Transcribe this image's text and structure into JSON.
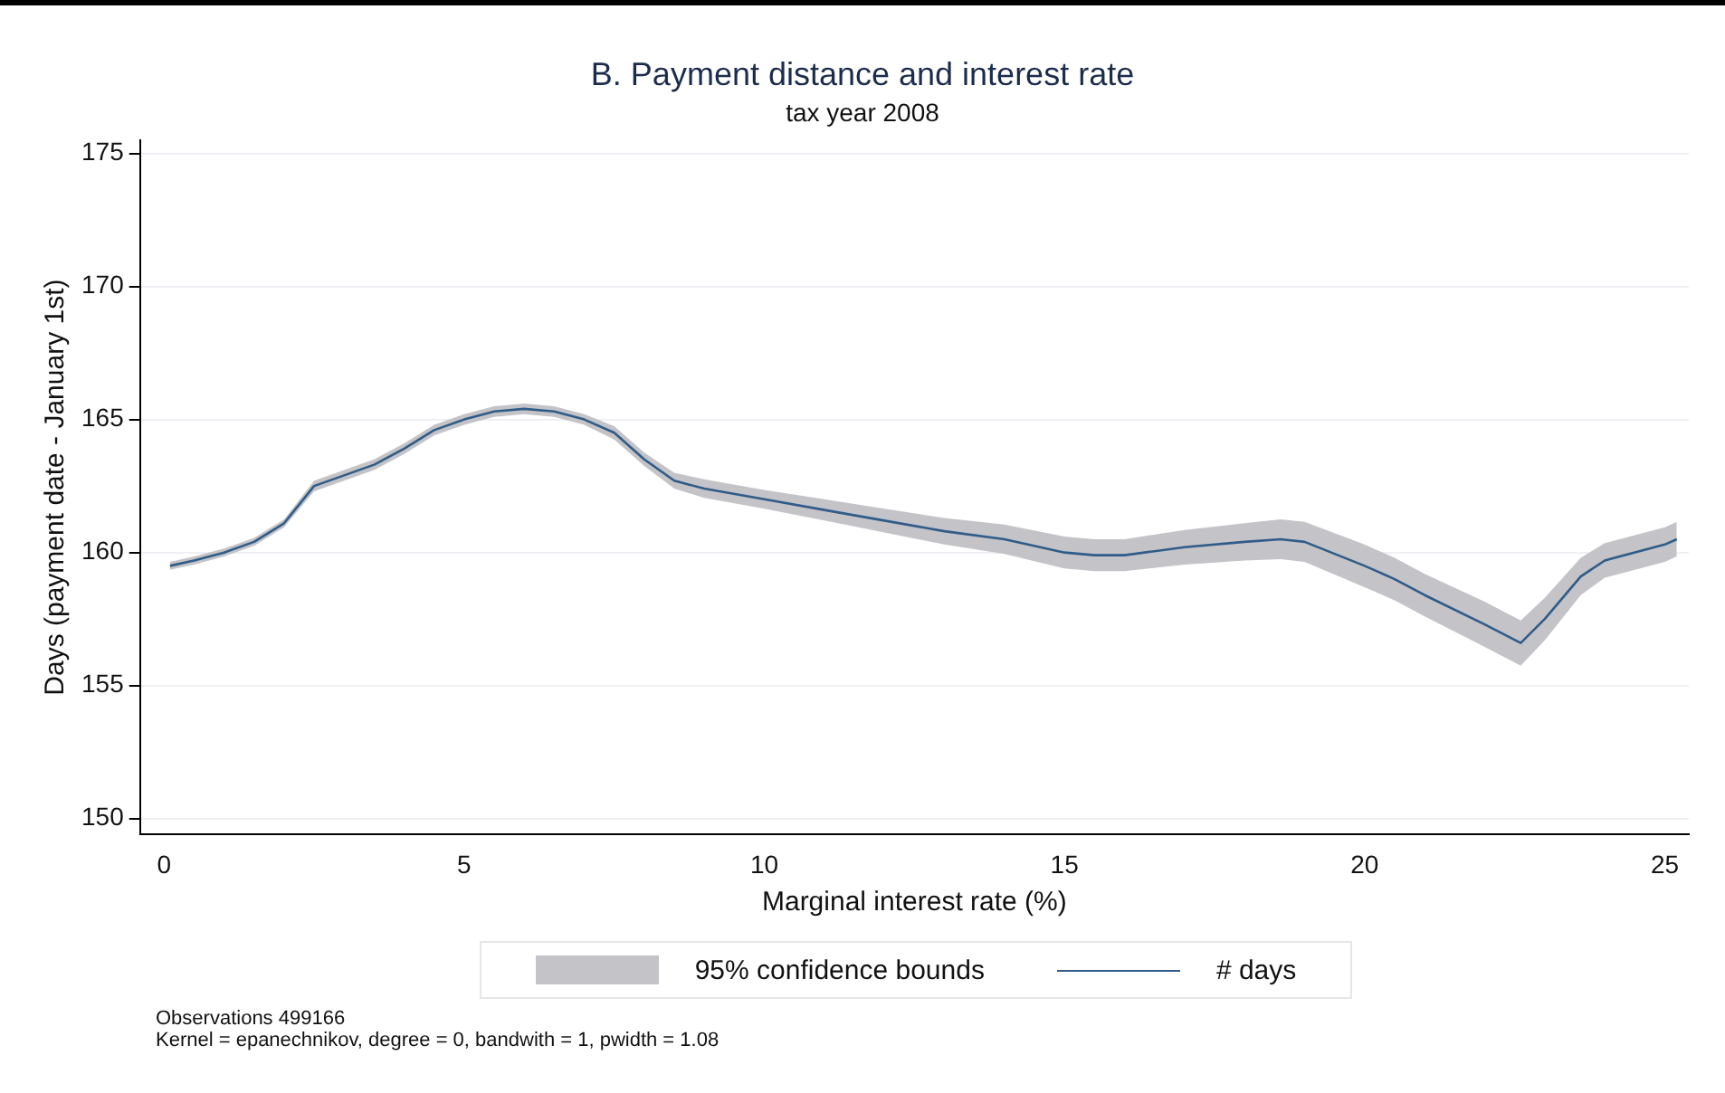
{
  "chart_data": {
    "type": "line",
    "title": "B. Payment distance and interest rate",
    "subtitle": "tax year 2008",
    "xlabel": "Marginal interest rate (%)",
    "ylabel": "Days (payment date - January 1st)",
    "x": [
      0.1,
      0.5,
      1,
      1.5,
      2,
      2.5,
      3,
      3.5,
      4,
      4.5,
      5,
      5.5,
      6,
      6.5,
      7,
      7.5,
      8,
      8.5,
      9,
      10,
      11,
      12,
      13,
      14,
      15,
      15.5,
      16,
      17,
      18,
      18.6,
      19,
      20,
      20.5,
      21,
      22,
      22.6,
      23,
      23.6,
      24,
      25,
      25.2
    ],
    "series": [
      {
        "name": "# days",
        "color": "#2f5c88",
        "values": [
          159.5,
          159.7,
          160.0,
          160.4,
          161.1,
          162.5,
          162.9,
          163.3,
          163.9,
          164.6,
          165.0,
          165.3,
          165.4,
          165.3,
          165.0,
          164.5,
          163.5,
          162.7,
          162.4,
          162.0,
          161.6,
          161.2,
          160.8,
          160.5,
          160.0,
          159.9,
          159.9,
          160.2,
          160.4,
          160.5,
          160.4,
          159.5,
          159.0,
          158.4,
          157.3,
          156.6,
          157.5,
          159.1,
          159.7,
          160.3,
          160.5
        ],
        "lower": [
          159.35,
          159.55,
          159.85,
          160.25,
          160.95,
          162.3,
          162.7,
          163.1,
          163.7,
          164.4,
          164.8,
          165.1,
          165.2,
          165.1,
          164.8,
          164.25,
          163.25,
          162.4,
          162.05,
          161.65,
          161.2,
          160.75,
          160.3,
          159.95,
          159.4,
          159.3,
          159.3,
          159.55,
          159.7,
          159.75,
          159.65,
          158.7,
          158.2,
          157.6,
          156.45,
          155.75,
          156.7,
          158.4,
          159.05,
          159.65,
          159.85
        ],
        "upper": [
          159.65,
          159.85,
          160.15,
          160.55,
          161.25,
          162.7,
          163.1,
          163.5,
          164.1,
          164.8,
          165.2,
          165.5,
          165.6,
          165.5,
          165.2,
          164.75,
          163.75,
          163.0,
          162.75,
          162.35,
          162.0,
          161.65,
          161.3,
          161.05,
          160.6,
          160.5,
          160.5,
          160.85,
          161.1,
          161.25,
          161.15,
          160.3,
          159.8,
          159.2,
          158.15,
          157.45,
          158.3,
          159.8,
          160.35,
          160.95,
          161.15
        ]
      }
    ],
    "xlim": [
      -0.4,
      25.4
    ],
    "xticks": [
      0,
      5,
      10,
      15,
      20,
      25
    ],
    "ylim": [
      149.4,
      175.5
    ],
    "yticks": [
      150,
      155,
      160,
      165,
      170,
      175
    ],
    "grid": "y",
    "legend": "bottom",
    "marker": "none",
    "line_style": "solid",
    "annotations": [
      "95% confidence bounds",
      "Observations 499166",
      "Kernel = epanechnikov, degree = 0, bandwith = 1, pwidth = 1.08"
    ]
  }
}
